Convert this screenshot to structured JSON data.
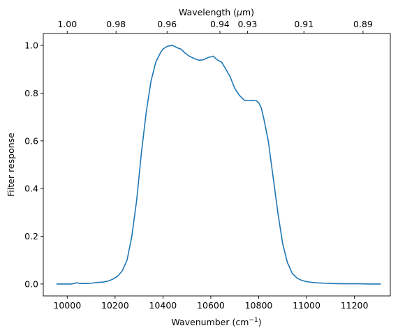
{
  "chart_data": {
    "type": "line",
    "xlabel_main": "Wavenumber (cm",
    "xlabel_sup": "−1",
    "xlabel_tail": ")",
    "ylabel": "Filter response",
    "top_xlabel_pre": "Wavelength (",
    "top_xlabel_mu": "μ",
    "top_xlabel_post": "m)",
    "xlim": [
      9900,
      11350
    ],
    "ylim": [
      -0.05,
      1.05
    ],
    "x_ticks": [
      10000,
      10200,
      10400,
      10600,
      10800,
      11000,
      11200
    ],
    "y_ticks": [
      0.0,
      0.2,
      0.4,
      0.6,
      0.8,
      1.0
    ],
    "y_tick_labels": [
      "0.0",
      "0.2",
      "0.4",
      "0.6",
      "0.8",
      "1.0"
    ],
    "top_ticks": [
      {
        "label": "1.00",
        "wavenumber": 10000
      },
      {
        "label": "0.98",
        "wavenumber": 10204
      },
      {
        "label": "0.96",
        "wavenumber": 10417
      },
      {
        "label": "0.94",
        "wavenumber": 10638
      },
      {
        "label": "0.93",
        "wavenumber": 10753
      },
      {
        "label": "0.91",
        "wavenumber": 10989
      },
      {
        "label": "0.89",
        "wavenumber": 11236
      }
    ],
    "line_color": "#1f77b4",
    "series": [
      {
        "x": [
          9955,
          9980,
          10000,
          10020,
          10040,
          10050,
          10060,
          10080,
          10100,
          10120,
          10130,
          10150,
          10170,
          10190,
          10210,
          10230,
          10250,
          10270,
          10290,
          10310,
          10330,
          10350,
          10370,
          10390,
          10400,
          10420,
          10440,
          10460,
          10475,
          10490,
          10510,
          10530,
          10550,
          10570,
          10590,
          10600,
          10610,
          10620,
          10635,
          10645,
          10660,
          10680,
          10700,
          10720,
          10740,
          10760,
          10775,
          10790,
          10800,
          10810,
          10820,
          10840,
          10860,
          10880,
          10900,
          10920,
          10940,
          10960,
          10980,
          11000,
          11020,
          11040,
          11060,
          11080,
          11100,
          11140,
          11180,
          11220,
          11260,
          11300,
          11310
        ],
        "y": [
          0.0,
          0.0,
          0.0,
          0.0,
          0.005,
          0.003,
          0.002,
          0.002,
          0.003,
          0.006,
          0.007,
          0.008,
          0.012,
          0.02,
          0.032,
          0.055,
          0.1,
          0.2,
          0.35,
          0.55,
          0.72,
          0.85,
          0.93,
          0.97,
          0.985,
          0.997,
          1.0,
          0.99,
          0.985,
          0.97,
          0.955,
          0.945,
          0.938,
          0.94,
          0.95,
          0.952,
          0.955,
          0.945,
          0.935,
          0.93,
          0.905,
          0.87,
          0.82,
          0.79,
          0.77,
          0.768,
          0.77,
          0.768,
          0.76,
          0.74,
          0.7,
          0.6,
          0.45,
          0.3,
          0.17,
          0.09,
          0.045,
          0.025,
          0.015,
          0.01,
          0.007,
          0.005,
          0.004,
          0.003,
          0.002,
          0.001,
          0.001,
          0.001,
          0.0,
          0.0,
          0.0
        ]
      }
    ]
  }
}
